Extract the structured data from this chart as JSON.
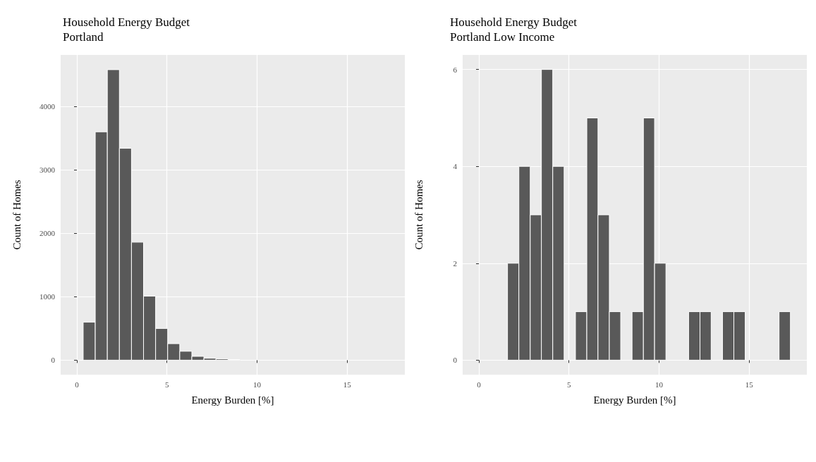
{
  "chart_data": [
    {
      "type": "histogram",
      "title": "Household Energy Budget\nPortland",
      "xlabel": "Energy Burden [%]",
      "ylabel": "Count of Homes",
      "color": "#595959",
      "bins": [
        0.35,
        1.02,
        1.69,
        2.36,
        3.03,
        3.7,
        4.37,
        5.04,
        5.71,
        6.38,
        7.05,
        7.72,
        8.39,
        9.06,
        9.73,
        10.4
      ],
      "values": [
        600,
        3600,
        4580,
        3340,
        1860,
        1010,
        500,
        260,
        140,
        60,
        30,
        20,
        10,
        0,
        0
      ],
      "xlim": [
        -0.9,
        18.2
      ],
      "ylim": [
        -229,
        4812
      ],
      "xticks": [
        0,
        5,
        10,
        15
      ],
      "yticks": [
        0,
        1000,
        2000,
        3000,
        4000
      ],
      "grid": true
    },
    {
      "type": "histogram",
      "title": "Household Energy Budget\nPortland Low Income",
      "xlabel": "Energy Burden [%]",
      "ylabel": "Count of Homes",
      "color": "#595959",
      "bins": [
        1.59,
        2.22,
        2.85,
        3.47,
        4.1,
        4.73,
        5.36,
        5.99,
        6.61,
        7.24,
        7.87,
        8.5,
        9.13,
        9.75,
        10.38,
        11.01,
        11.64,
        12.27,
        12.89,
        13.52,
        14.15,
        14.78,
        15.41,
        16.03,
        16.66,
        17.29
      ],
      "values": [
        2,
        4,
        3,
        6,
        4,
        0,
        1,
        5,
        3,
        1,
        0,
        1,
        5,
        2,
        0,
        0,
        1,
        1,
        0,
        1,
        1,
        0,
        0,
        0,
        1
      ],
      "xlim": [
        -0.9,
        18.2
      ],
      "ylim": [
        -0.3,
        6.3
      ],
      "xticks": [
        0,
        5,
        10,
        15
      ],
      "yticks": [
        0,
        2,
        4,
        6
      ],
      "grid": true
    }
  ]
}
